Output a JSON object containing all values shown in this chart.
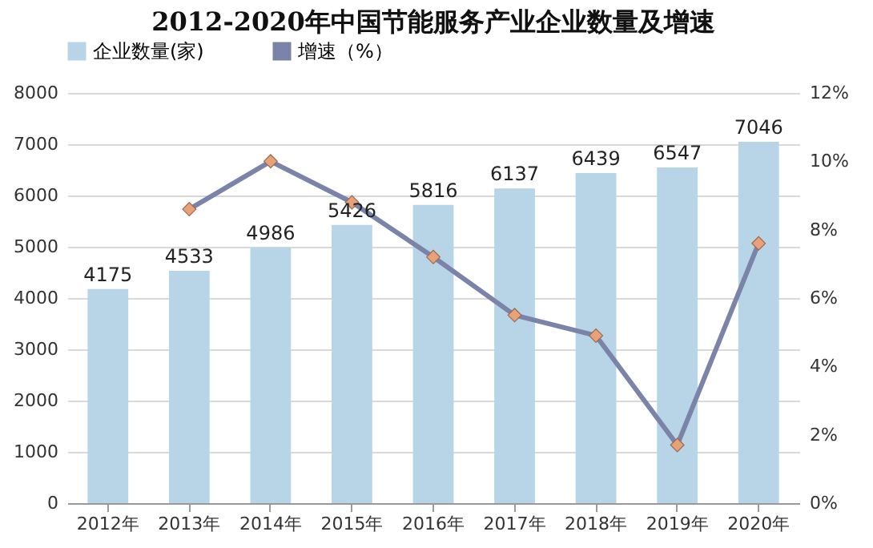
{
  "chart_data": {
    "type": "bar",
    "title": "2012-2020年中国节能服务产业企业数量及增速",
    "categories": [
      "2012年",
      "2013年",
      "2014年",
      "2015年",
      "2016年",
      "2017年",
      "2018年",
      "2019年",
      "2020年"
    ],
    "series": [
      {
        "name": "企业数量(家)",
        "color": "#b7d5e7",
        "values": [
          4175,
          4533,
          4986,
          5426,
          5816,
          6137,
          6439,
          6547,
          7046
        ],
        "value_labels": [
          "4175",
          "4533",
          "4986",
          "5426",
          "5816",
          "6137",
          "6439",
          "6547",
          "7046"
        ]
      },
      {
        "name": "增速（%）",
        "type": "line",
        "axis": "y2",
        "color": "#7b83a8",
        "colors": [
          "#e8a27a",
          "#e8a27a",
          "#e8a27a",
          "#e8a27a",
          "#e8a27a",
          "#e8a27a",
          "#e8a27a",
          "#e8a27a",
          "#e8a27a"
        ],
        "values": [
          null,
          8.6,
          10.0,
          8.8,
          7.2,
          5.5,
          4.9,
          1.7,
          7.6
        ]
      }
    ],
    "ylim": [
      0,
      8000
    ],
    "yticks": [
      0,
      1000,
      2000,
      3000,
      4000,
      5000,
      6000,
      7000,
      8000
    ],
    "y2lim": [
      0,
      12
    ],
    "y2ticks": [
      {
        "value": 0,
        "label": "0%"
      },
      {
        "value": 2,
        "label": "2%"
      },
      {
        "value": 4,
        "label": "4%"
      },
      {
        "value": 6,
        "label": "6%"
      },
      {
        "value": 8,
        "label": "8%"
      },
      {
        "value": 10,
        "label": "10%"
      },
      {
        "value": 12,
        "label": "12%"
      }
    ],
    "grid": "y",
    "legend": "top",
    "marker": "diamond",
    "line_style": "solid"
  }
}
